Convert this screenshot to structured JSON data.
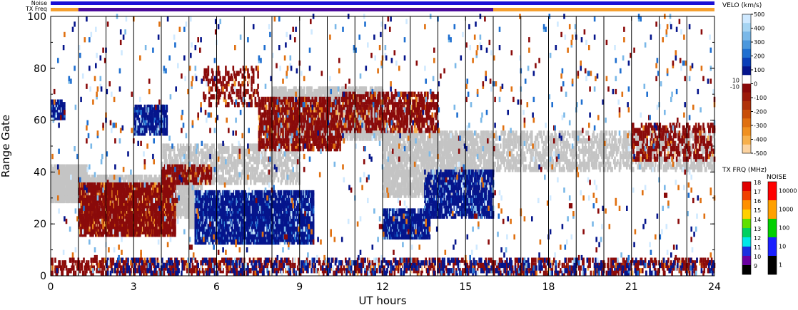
{
  "chart_data": {
    "type": "heatmap",
    "title": "",
    "xlabel": "UT hours",
    "ylabel": "Range Gate",
    "xlim": [
      0,
      24
    ],
    "ylim": [
      0,
      100
    ],
    "x_ticks": [
      "0",
      "3",
      "6",
      "9",
      "12",
      "15",
      "18",
      "21",
      "24"
    ],
    "y_ticks": [
      "0",
      "20",
      "40",
      "60",
      "80",
      "100"
    ],
    "status_bars": {
      "noise_label": "Noise",
      "txfreq_label": "TX Freq",
      "noise_color": "#1a0fd6",
      "txfreq_segments": [
        {
          "from": 0,
          "to": 1,
          "color": "#f5a030"
        },
        {
          "from": 1,
          "to": 16,
          "color": "#4a0a9a"
        },
        {
          "from": 16,
          "to": 24,
          "color": "#f5a030"
        }
      ]
    },
    "scan_boundaries_ut": [
      1,
      2,
      3,
      4,
      5,
      6,
      7,
      8,
      9,
      10,
      11,
      12,
      13,
      14,
      15,
      16,
      17,
      18,
      19,
      20,
      21,
      22,
      23
    ],
    "velocity_colorbar": {
      "title": "VELO (km/s)",
      "ticks": [
        "500",
        "400",
        "300",
        "200",
        "100",
        "0",
        "-100",
        "-200",
        "-300",
        "-400",
        "-500"
      ],
      "near_zero_labels": [
        "10",
        "-10"
      ],
      "colors": [
        "#cfe9ff",
        "#a6d4f2",
        "#7ab8e8",
        "#4a97dd",
        "#1f6fd0",
        "#0a3fb8",
        "#05158c",
        "#ffffff",
        "#8a0a0a",
        "#9c1a0a",
        "#b0320a",
        "#c84e08",
        "#e07010",
        "#f09020",
        "#f7b04c",
        "#fcd3a0"
      ],
      "ground_scatter_color": "#c4c4c4"
    },
    "txfreq_colorbar": {
      "title": "TX FRQ (MHz)",
      "ticks": [
        "18",
        "17",
        "16",
        "15",
        "14",
        "13",
        "12",
        "11",
        "10",
        "9"
      ],
      "colors": [
        "#e00000",
        "#f04000",
        "#ff9000",
        "#ffd000",
        "#60e000",
        "#00d060",
        "#00e8e8",
        "#1a30e0",
        "#6a00a0",
        "#000000"
      ]
    },
    "noise_colorbar": {
      "title": "NOISE",
      "ticks": [
        "10000",
        "1000",
        "100",
        "10",
        "1"
      ],
      "colors": [
        "#ff0000",
        "#ffa000",
        "#00d000",
        "#1a20ff",
        "#000000"
      ]
    },
    "echo_regions": [
      {
        "kind": "ground",
        "x": [
          0,
          1.3
        ],
        "y": [
          28,
          42
        ],
        "density": 0.8
      },
      {
        "kind": "ground",
        "x": [
          1,
          5.5
        ],
        "y": [
          22,
          38
        ],
        "density": 0.6
      },
      {
        "kind": "ground",
        "x": [
          5,
          9.5
        ],
        "y": [
          18,
          30
        ],
        "density": 0.7
      },
      {
        "kind": "ground",
        "x": [
          8,
          12
        ],
        "y": [
          52,
          72
        ],
        "density": 0.6
      },
      {
        "kind": "ground",
        "x": [
          12,
          16
        ],
        "y": [
          30,
          55
        ],
        "density": 0.5
      },
      {
        "kind": "ground",
        "x": [
          16,
          24
        ],
        "y": [
          40,
          55
        ],
        "density": 0.3
      },
      {
        "kind": "ground",
        "x": [
          4,
          9
        ],
        "y": [
          35,
          50
        ],
        "density": 0.35
      },
      {
        "kind": "negative",
        "x": [
          1,
          4.5
        ],
        "y": [
          15,
          35
        ],
        "density": 0.7
      },
      {
        "kind": "negative",
        "x": [
          4,
          5.8
        ],
        "y": [
          35,
          42
        ],
        "density": 0.5
      },
      {
        "kind": "negative",
        "x": [
          7.5,
          10.5
        ],
        "y": [
          48,
          68
        ],
        "density": 0.45
      },
      {
        "kind": "negative",
        "x": [
          10.5,
          14
        ],
        "y": [
          55,
          70
        ],
        "density": 0.4
      },
      {
        "kind": "negative",
        "x": [
          5.5,
          7.5
        ],
        "y": [
          65,
          80
        ],
        "density": 0.2
      },
      {
        "kind": "negative",
        "x": [
          0,
          24
        ],
        "y": [
          0,
          6
        ],
        "density": 0.25
      },
      {
        "kind": "negative",
        "x": [
          21,
          24
        ],
        "y": [
          44,
          58
        ],
        "density": 0.25
      },
      {
        "kind": "positive",
        "x": [
          5.2,
          9.5
        ],
        "y": [
          12,
          32
        ],
        "density": 0.75
      },
      {
        "kind": "positive",
        "x": [
          12,
          13.7
        ],
        "y": [
          14,
          25
        ],
        "density": 0.75
      },
      {
        "kind": "positive",
        "x": [
          13.5,
          16
        ],
        "y": [
          22,
          40
        ],
        "density": 0.55
      },
      {
        "kind": "positive",
        "x": [
          3,
          4.2
        ],
        "y": [
          54,
          65
        ],
        "density": 0.6
      },
      {
        "kind": "positive",
        "x": [
          0,
          0.5
        ],
        "y": [
          60,
          67
        ],
        "density": 0.7
      },
      {
        "kind": "positive",
        "x": [
          2,
          24
        ],
        "y": [
          0,
          6
        ],
        "density": 0.12
      },
      {
        "kind": "sparse",
        "x": [
          0,
          24
        ],
        "y": [
          0,
          100
        ],
        "density": 0.015
      }
    ]
  }
}
